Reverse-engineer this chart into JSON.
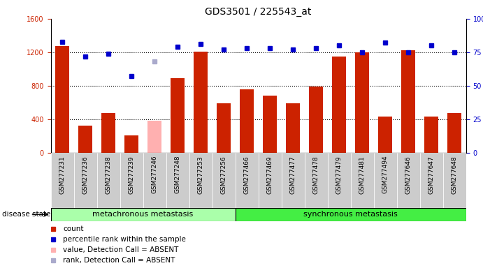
{
  "title": "GDS3501 / 225543_at",
  "samples": [
    "GSM277231",
    "GSM277236",
    "GSM277238",
    "GSM277239",
    "GSM277246",
    "GSM277248",
    "GSM277253",
    "GSM277256",
    "GSM277466",
    "GSM277469",
    "GSM277477",
    "GSM277478",
    "GSM277479",
    "GSM277481",
    "GSM277494",
    "GSM277646",
    "GSM277647",
    "GSM277648"
  ],
  "count_values": [
    1270,
    320,
    470,
    210,
    null,
    890,
    1210,
    590,
    760,
    680,
    590,
    790,
    1150,
    1200,
    430,
    1220,
    430,
    470
  ],
  "count_absent": [
    null,
    null,
    null,
    null,
    380,
    null,
    null,
    null,
    null,
    null,
    null,
    null,
    null,
    null,
    null,
    null,
    null,
    null
  ],
  "percentile_values": [
    83,
    72,
    74,
    57,
    null,
    79,
    81,
    77,
    78,
    78,
    77,
    78,
    80,
    75,
    82,
    75,
    80,
    75
  ],
  "percentile_absent": [
    null,
    null,
    null,
    null,
    68,
    null,
    null,
    null,
    null,
    null,
    null,
    null,
    null,
    null,
    null,
    null,
    null,
    null
  ],
  "group1_count": 8,
  "group1_label": "metachronous metastasis",
  "group2_label": "synchronous metastasis",
  "ylim_left": [
    0,
    1600
  ],
  "ylim_right": [
    0,
    100
  ],
  "yticks_left": [
    0,
    400,
    800,
    1200,
    1600
  ],
  "yticks_right": [
    0,
    25,
    50,
    75,
    100
  ],
  "bar_color": "#cc2200",
  "bar_absent_color": "#ffb0b0",
  "dot_color": "#0000cc",
  "dot_absent_color": "#aaaacc",
  "group1_color": "#aaffaa",
  "group2_color": "#44ee44",
  "bg_color": "#ffffff",
  "xlabel_area_color": "#cccccc",
  "disease_state_label": "disease state",
  "legend_items": [
    {
      "label": "count",
      "color": "#cc2200"
    },
    {
      "label": "percentile rank within the sample",
      "color": "#0000cc"
    },
    {
      "label": "value, Detection Call = ABSENT",
      "color": "#ffb0b0"
    },
    {
      "label": "rank, Detection Call = ABSENT",
      "color": "#aaaacc"
    }
  ]
}
